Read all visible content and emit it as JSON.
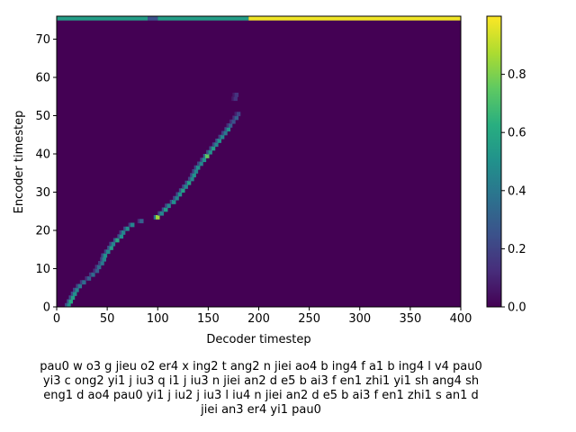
{
  "chart_data": {
    "type": "heatmap",
    "xlabel": "Decoder timestep",
    "ylabel": "Encoder timestep",
    "xlim": [
      0,
      400
    ],
    "ylim": [
      0,
      76
    ],
    "xticks": [
      0,
      50,
      100,
      150,
      200,
      250,
      300,
      350,
      400
    ],
    "yticks": [
      0,
      10,
      20,
      30,
      40,
      50,
      60,
      70
    ],
    "colorbar": {
      "min": 0.0,
      "max": 1.0,
      "ticks": [
        "0.0",
        "0.2",
        "0.4",
        "0.6",
        "0.8"
      ],
      "tick_values": [
        0.0,
        0.2,
        0.4,
        0.6,
        0.8
      ]
    },
    "colormap": "viridis",
    "background_color": "#440154",
    "alignment_path": [
      {
        "x": 12,
        "y": 0,
        "v": 0.5
      },
      {
        "x": 14,
        "y": 1,
        "v": 0.6
      },
      {
        "x": 16,
        "y": 2,
        "v": 0.55
      },
      {
        "x": 18,
        "y": 3,
        "v": 0.5
      },
      {
        "x": 20,
        "y": 4,
        "v": 0.45
      },
      {
        "x": 23,
        "y": 5,
        "v": 0.4
      },
      {
        "x": 27,
        "y": 6,
        "v": 0.35
      },
      {
        "x": 32,
        "y": 7,
        "v": 0.3
      },
      {
        "x": 36,
        "y": 8,
        "v": 0.35
      },
      {
        "x": 40,
        "y": 9,
        "v": 0.3
      },
      {
        "x": 42,
        "y": 10,
        "v": 0.35
      },
      {
        "x": 45,
        "y": 11,
        "v": 0.4
      },
      {
        "x": 47,
        "y": 12,
        "v": 0.45
      },
      {
        "x": 48,
        "y": 13,
        "v": 0.5
      },
      {
        "x": 51,
        "y": 14,
        "v": 0.45
      },
      {
        "x": 54,
        "y": 15,
        "v": 0.55
      },
      {
        "x": 56,
        "y": 16,
        "v": 0.45
      },
      {
        "x": 60,
        "y": 17,
        "v": 0.6
      },
      {
        "x": 64,
        "y": 18,
        "v": 0.5
      },
      {
        "x": 66,
        "y": 19,
        "v": 0.45
      },
      {
        "x": 70,
        "y": 20,
        "v": 0.5
      },
      {
        "x": 75,
        "y": 21,
        "v": 0.45
      },
      {
        "x": 84,
        "y": 22,
        "v": 0.3
      },
      {
        "x": 100,
        "y": 23,
        "v": 0.85
      },
      {
        "x": 104,
        "y": 24,
        "v": 0.45
      },
      {
        "x": 108,
        "y": 25,
        "v": 0.55
      },
      {
        "x": 111,
        "y": 26,
        "v": 0.45
      },
      {
        "x": 116,
        "y": 27,
        "v": 0.5
      },
      {
        "x": 119,
        "y": 28,
        "v": 0.45
      },
      {
        "x": 122,
        "y": 29,
        "v": 0.5
      },
      {
        "x": 125,
        "y": 30,
        "v": 0.55
      },
      {
        "x": 128,
        "y": 31,
        "v": 0.45
      },
      {
        "x": 131,
        "y": 32,
        "v": 0.55
      },
      {
        "x": 134,
        "y": 33,
        "v": 0.45
      },
      {
        "x": 136,
        "y": 34,
        "v": 0.5
      },
      {
        "x": 138,
        "y": 35,
        "v": 0.45
      },
      {
        "x": 140,
        "y": 36,
        "v": 0.5
      },
      {
        "x": 143,
        "y": 37,
        "v": 0.45
      },
      {
        "x": 146,
        "y": 38,
        "v": 0.5
      },
      {
        "x": 149,
        "y": 39,
        "v": 0.75
      },
      {
        "x": 152,
        "y": 40,
        "v": 0.5
      },
      {
        "x": 155,
        "y": 41,
        "v": 0.55
      },
      {
        "x": 158,
        "y": 42,
        "v": 0.45
      },
      {
        "x": 161,
        "y": 43,
        "v": 0.5
      },
      {
        "x": 164,
        "y": 44,
        "v": 0.45
      },
      {
        "x": 167,
        "y": 45,
        "v": 0.4
      },
      {
        "x": 170,
        "y": 46,
        "v": 0.5
      },
      {
        "x": 172,
        "y": 47,
        "v": 0.3
      },
      {
        "x": 175,
        "y": 48,
        "v": 0.25
      },
      {
        "x": 178,
        "y": 49,
        "v": 0.3
      },
      {
        "x": 180,
        "y": 50,
        "v": 0.2
      },
      {
        "x": 177,
        "y": 54,
        "v": 0.15
      },
      {
        "x": 178,
        "y": 55,
        "v": 0.15
      }
    ],
    "top_band": [
      {
        "x0": 0,
        "x1": 90,
        "v": 0.55
      },
      {
        "x0": 90,
        "x1": 100,
        "v": 0.25
      },
      {
        "x0": 100,
        "x1": 190,
        "v": 0.55
      },
      {
        "x0": 190,
        "x1": 400,
        "v": 0.98
      }
    ]
  },
  "caption": "pau0 w o3 g jieu o2 er4 x ing2 t ang2 n jiei ao4 b ing4 f a1 b ing4 l v4 pau0 yi3 c ong2 yi1 j iu3 q i1 j iu3 n jiei an2 d e5 b ai3 f en1 zhi1 yi1 sh ang4 sh eng1 d ao4 pau0 yi1 j iu2 j iu3 l iu4 n jiei an2 d e5 b ai3 f en1 zhi1 s an1 d jiei an3 er4 yi1 pau0"
}
